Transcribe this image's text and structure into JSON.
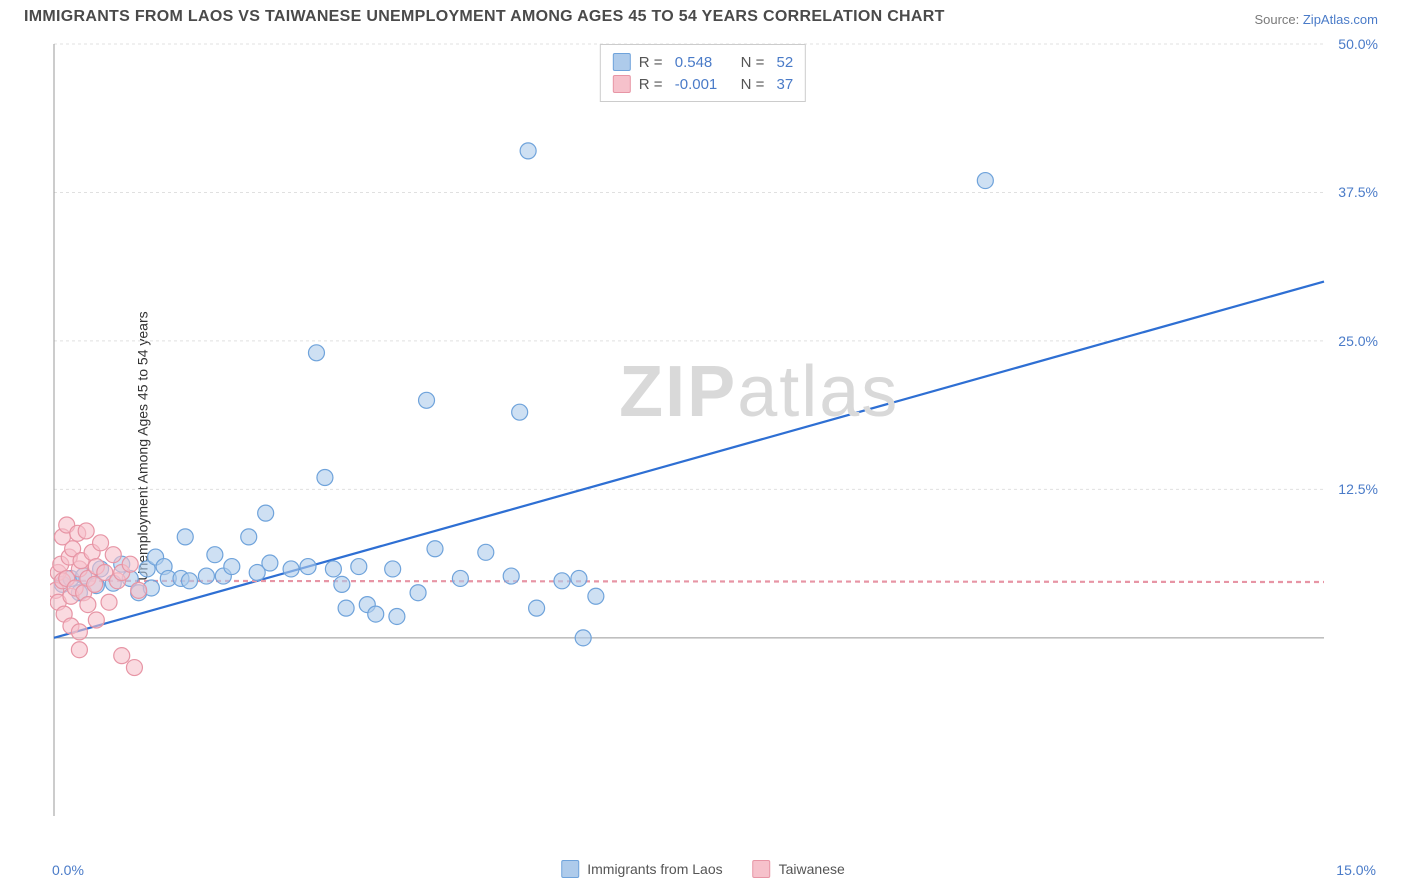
{
  "title": "IMMIGRANTS FROM LAOS VS TAIWANESE UNEMPLOYMENT AMONG AGES 45 TO 54 YEARS CORRELATION CHART",
  "source_label": "Source: ",
  "source_link": "ZipAtlas.com",
  "ylabel": "Unemployment Among Ages 45 to 54 years",
  "watermark_a": "ZIP",
  "watermark_b": "atlas",
  "chart": {
    "type": "scatter",
    "xlim": [
      0,
      15
    ],
    "ylim": [
      -15,
      50
    ],
    "x_axis_origin_y": 0,
    "x_ticks": [
      {
        "v": 0,
        "label": "0.0%"
      },
      {
        "v": 15,
        "label": "15.0%"
      }
    ],
    "y_ticks": [
      {
        "v": 12.5,
        "label": "12.5%"
      },
      {
        "v": 25.0,
        "label": "25.0%"
      },
      {
        "v": 37.5,
        "label": "37.5%"
      },
      {
        "v": 50.0,
        "label": "50.0%"
      }
    ],
    "y_gridlines": [
      12.5,
      25.0,
      37.5,
      50.0
    ],
    "grid_color": "#e0e0e0",
    "axis_color": "#999999",
    "background_color": "#ffffff",
    "marker_radius": 8,
    "marker_stroke_width": 1.2,
    "trendline_width": 2.2,
    "series": [
      {
        "name": "Immigrants from Laos",
        "fill": "#aecbeb",
        "stroke": "#6fa3db",
        "fill_opacity": 0.6,
        "R": "0.548",
        "N": "52",
        "trend": {
          "x1": 0,
          "y1": 0,
          "x2": 15,
          "y2": 30,
          "color": "#2e6fd3",
          "dash": null
        },
        "points": [
          [
            0.1,
            4.5
          ],
          [
            0.2,
            5.0
          ],
          [
            0.3,
            3.8
          ],
          [
            0.35,
            5.2
          ],
          [
            0.5,
            4.4
          ],
          [
            0.55,
            5.8
          ],
          [
            0.7,
            4.6
          ],
          [
            0.8,
            6.2
          ],
          [
            0.9,
            5.0
          ],
          [
            1.0,
            3.8
          ],
          [
            1.1,
            5.8
          ],
          [
            1.15,
            4.2
          ],
          [
            1.2,
            6.8
          ],
          [
            1.3,
            6.0
          ],
          [
            1.35,
            5.0
          ],
          [
            1.5,
            5.0
          ],
          [
            1.55,
            8.5
          ],
          [
            1.6,
            4.8
          ],
          [
            1.8,
            5.2
          ],
          [
            1.9,
            7.0
          ],
          [
            2.0,
            5.2
          ],
          [
            2.1,
            6.0
          ],
          [
            2.3,
            8.5
          ],
          [
            2.4,
            5.5
          ],
          [
            2.5,
            10.5
          ],
          [
            2.55,
            6.3
          ],
          [
            2.8,
            5.8
          ],
          [
            3.0,
            6.0
          ],
          [
            3.1,
            24.0
          ],
          [
            3.2,
            13.5
          ],
          [
            3.3,
            5.8
          ],
          [
            3.4,
            4.5
          ],
          [
            3.45,
            2.5
          ],
          [
            3.6,
            6.0
          ],
          [
            3.7,
            2.8
          ],
          [
            3.8,
            2.0
          ],
          [
            4.0,
            5.8
          ],
          [
            4.05,
            1.8
          ],
          [
            4.3,
            3.8
          ],
          [
            4.4,
            20.0
          ],
          [
            4.5,
            7.5
          ],
          [
            4.8,
            5.0
          ],
          [
            5.1,
            7.2
          ],
          [
            5.4,
            5.2
          ],
          [
            5.5,
            19.0
          ],
          [
            5.6,
            41.0
          ],
          [
            5.7,
            2.5
          ],
          [
            6.2,
            5.0
          ],
          [
            6.25,
            0.0
          ],
          [
            6.4,
            3.5
          ],
          [
            11.0,
            38.5
          ],
          [
            6.0,
            4.8
          ]
        ]
      },
      {
        "name": "Taiwanese",
        "fill": "#f6c1cb",
        "stroke": "#e795a5",
        "fill_opacity": 0.6,
        "R": "-0.001",
        "N": "37",
        "trend": {
          "x1": 0,
          "y1": 4.8,
          "x2": 15,
          "y2": 4.7,
          "color": "#e795a5",
          "dash": "5,4"
        },
        "points": [
          [
            0.02,
            4.0
          ],
          [
            0.05,
            5.5
          ],
          [
            0.05,
            3.0
          ],
          [
            0.08,
            6.2
          ],
          [
            0.1,
            4.8
          ],
          [
            0.1,
            8.5
          ],
          [
            0.12,
            2.0
          ],
          [
            0.15,
            9.5
          ],
          [
            0.15,
            5.0
          ],
          [
            0.18,
            6.8
          ],
          [
            0.2,
            1.0
          ],
          [
            0.2,
            3.5
          ],
          [
            0.22,
            7.5
          ],
          [
            0.25,
            4.2
          ],
          [
            0.28,
            8.8
          ],
          [
            0.3,
            5.8
          ],
          [
            0.3,
            0.5
          ],
          [
            0.3,
            -1.0
          ],
          [
            0.32,
            6.5
          ],
          [
            0.35,
            3.8
          ],
          [
            0.38,
            9.0
          ],
          [
            0.4,
            5.0
          ],
          [
            0.4,
            2.8
          ],
          [
            0.45,
            7.2
          ],
          [
            0.48,
            4.5
          ],
          [
            0.5,
            6.0
          ],
          [
            0.5,
            1.5
          ],
          [
            0.55,
            8.0
          ],
          [
            0.6,
            5.5
          ],
          [
            0.65,
            3.0
          ],
          [
            0.7,
            7.0
          ],
          [
            0.75,
            4.8
          ],
          [
            0.8,
            5.5
          ],
          [
            0.8,
            -1.5
          ],
          [
            0.9,
            6.2
          ],
          [
            0.95,
            -2.5
          ],
          [
            1.0,
            4.0
          ]
        ]
      }
    ]
  },
  "legend_bottom": [
    {
      "label": "Immigrants from Laos",
      "fill": "#aecbeb",
      "stroke": "#6fa3db"
    },
    {
      "label": "Taiwanese",
      "fill": "#f6c1cb",
      "stroke": "#e795a5"
    }
  ]
}
